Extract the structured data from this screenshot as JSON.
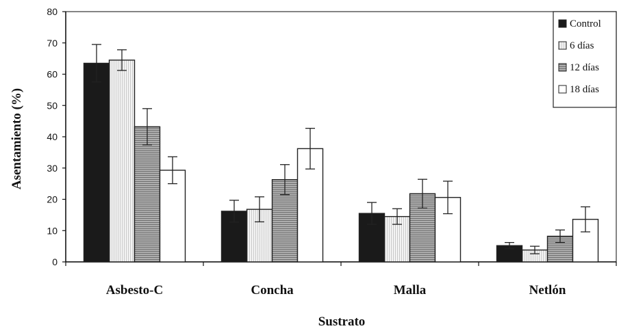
{
  "chart_data": {
    "type": "bar",
    "title": "",
    "xlabel": "Sustrato",
    "ylabel": "Asentamiento (%)",
    "ylim": [
      0,
      80
    ],
    "yticks": [
      0,
      10,
      20,
      30,
      40,
      50,
      60,
      70,
      80
    ],
    "categories": [
      "Asbesto-C",
      "Concha",
      "Malla",
      "Netlón"
    ],
    "series": [
      {
        "name": "Control",
        "values": [
          63.5,
          16.2,
          15.5,
          5.2
        ],
        "errors": [
          6.0,
          3.5,
          3.5,
          1.0
        ],
        "fill": "#1a1a1a",
        "pattern": "solid"
      },
      {
        "name": "6 días",
        "values": [
          64.5,
          16.8,
          14.5,
          3.8
        ],
        "errors": [
          3.3,
          4.0,
          2.5,
          1.2
        ],
        "fill": "#f2f2f2",
        "pattern": "vlines"
      },
      {
        "name": "12 días",
        "values": [
          43.2,
          26.3,
          21.8,
          8.2
        ],
        "errors": [
          5.8,
          4.8,
          4.6,
          2.0
        ],
        "fill": "#9a9a9a",
        "pattern": "hlines"
      },
      {
        "name": "18 días",
        "values": [
          29.3,
          36.2,
          20.6,
          13.6
        ],
        "errors": [
          4.3,
          6.5,
          5.2,
          4.0
        ],
        "fill": "#ffffff",
        "pattern": "solid"
      }
    ],
    "legend_position": "top-right",
    "grid": false
  }
}
